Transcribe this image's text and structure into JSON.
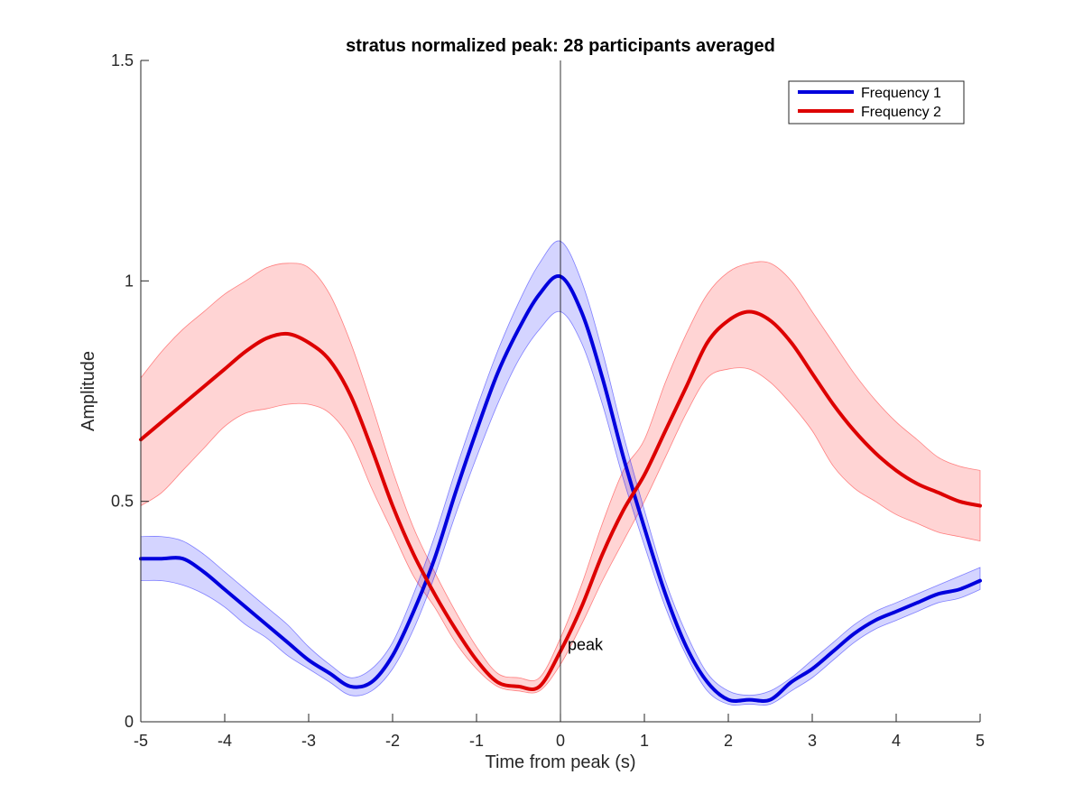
{
  "chart_data": {
    "type": "line",
    "title": "stratus normalized peak: 28 participants averaged",
    "xlabel": "Time from peak (s)",
    "ylabel": "Amplitude",
    "xlim": [
      -5,
      5
    ],
    "ylim": [
      0,
      1.5
    ],
    "xticks": [
      -5,
      -4,
      -3,
      -2,
      -1,
      0,
      1,
      2,
      3,
      4,
      5
    ],
    "yticks": [
      0,
      0.5,
      1,
      1.5
    ],
    "ytick_labels": [
      "0",
      "0.5",
      "1",
      "1.5"
    ],
    "grid": false,
    "legend_position": "top-right",
    "x": [
      -5.0,
      -4.75,
      -4.5,
      -4.25,
      -4.0,
      -3.75,
      -3.5,
      -3.25,
      -3.0,
      -2.75,
      -2.5,
      -2.25,
      -2.0,
      -1.75,
      -1.5,
      -1.25,
      -1.0,
      -0.75,
      -0.5,
      -0.25,
      0.0,
      0.25,
      0.5,
      0.75,
      1.0,
      1.25,
      1.5,
      1.75,
      2.0,
      2.25,
      2.5,
      2.75,
      3.0,
      3.25,
      3.5,
      3.75,
      4.0,
      4.25,
      4.5,
      4.75,
      5.0
    ],
    "series": [
      {
        "name": "Frequency 1",
        "color": "#0000dd",
        "band_color": "#0000ff",
        "values": [
          0.37,
          0.37,
          0.37,
          0.34,
          0.3,
          0.26,
          0.22,
          0.18,
          0.14,
          0.11,
          0.08,
          0.09,
          0.15,
          0.25,
          0.37,
          0.52,
          0.66,
          0.79,
          0.89,
          0.97,
          1.01,
          0.93,
          0.78,
          0.6,
          0.44,
          0.29,
          0.17,
          0.09,
          0.05,
          0.05,
          0.05,
          0.09,
          0.12,
          0.16,
          0.2,
          0.23,
          0.25,
          0.27,
          0.29,
          0.3,
          0.32
        ],
        "lower": [
          0.32,
          0.32,
          0.31,
          0.29,
          0.26,
          0.22,
          0.19,
          0.15,
          0.12,
          0.09,
          0.06,
          0.07,
          0.12,
          0.21,
          0.33,
          0.47,
          0.6,
          0.72,
          0.82,
          0.89,
          0.93,
          0.86,
          0.72,
          0.55,
          0.4,
          0.26,
          0.15,
          0.07,
          0.04,
          0.04,
          0.04,
          0.07,
          0.1,
          0.14,
          0.18,
          0.21,
          0.23,
          0.25,
          0.27,
          0.28,
          0.3
        ],
        "upper": [
          0.42,
          0.42,
          0.41,
          0.38,
          0.34,
          0.3,
          0.26,
          0.22,
          0.17,
          0.13,
          0.1,
          0.12,
          0.18,
          0.29,
          0.42,
          0.57,
          0.71,
          0.84,
          0.95,
          1.04,
          1.09,
          1.0,
          0.84,
          0.65,
          0.48,
          0.32,
          0.2,
          0.11,
          0.07,
          0.06,
          0.07,
          0.1,
          0.14,
          0.18,
          0.22,
          0.25,
          0.27,
          0.29,
          0.31,
          0.33,
          0.35
        ]
      },
      {
        "name": "Frequency 2",
        "color": "#dd0000",
        "band_color": "#ff0000",
        "values": [
          0.64,
          0.68,
          0.72,
          0.76,
          0.8,
          0.84,
          0.87,
          0.88,
          0.86,
          0.82,
          0.74,
          0.62,
          0.49,
          0.38,
          0.29,
          0.21,
          0.14,
          0.09,
          0.08,
          0.08,
          0.16,
          0.26,
          0.38,
          0.48,
          0.56,
          0.66,
          0.76,
          0.86,
          0.91,
          0.93,
          0.91,
          0.86,
          0.79,
          0.72,
          0.66,
          0.61,
          0.57,
          0.54,
          0.52,
          0.5,
          0.49
        ]
      }
    ],
    "band_f2_lower": [
      0.49,
      0.52,
      0.57,
      0.62,
      0.67,
      0.7,
      0.71,
      0.72,
      0.72,
      0.7,
      0.64,
      0.53,
      0.43,
      0.33,
      0.26,
      0.18,
      0.12,
      0.08,
      0.07,
      0.07,
      0.13,
      0.22,
      0.32,
      0.41,
      0.5,
      0.6,
      0.7,
      0.78,
      0.8,
      0.8,
      0.77,
      0.72,
      0.66,
      0.58,
      0.53,
      0.5,
      0.47,
      0.45,
      0.43,
      0.42,
      0.41
    ],
    "band_f2_upper": [
      0.78,
      0.84,
      0.89,
      0.93,
      0.97,
      1.0,
      1.03,
      1.04,
      1.03,
      0.97,
      0.86,
      0.72,
      0.57,
      0.44,
      0.34,
      0.25,
      0.17,
      0.11,
      0.1,
      0.1,
      0.19,
      0.31,
      0.45,
      0.57,
      0.64,
      0.77,
      0.88,
      0.97,
      1.02,
      1.04,
      1.04,
      1.0,
      0.93,
      0.86,
      0.79,
      0.73,
      0.68,
      0.64,
      0.6,
      0.58,
      0.57
    ],
    "reference_line": {
      "x": 0,
      "label": "peak",
      "label_y": 0.15
    }
  }
}
